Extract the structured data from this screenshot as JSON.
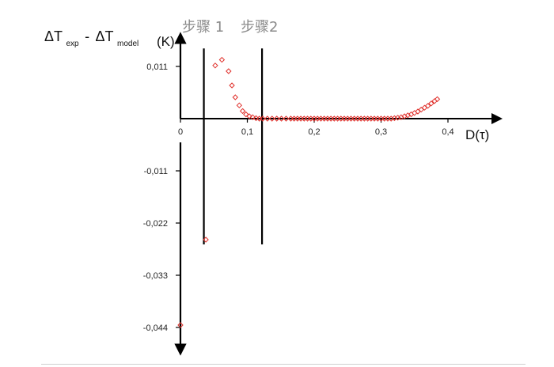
{
  "chart_data": {
    "type": "scatter",
    "title": "",
    "ylabel": {
      "main_1": "ΔT",
      "sub_1": "exp",
      "sep": "-",
      "main_2": "ΔT",
      "sub_2": "model"
    },
    "yunit": "(K)",
    "xlabel": "D(τ)",
    "xlim": [
      0,
      0.46
    ],
    "ylim": [
      -0.048,
      0.016
    ],
    "x_ticks": [
      "0",
      "0,1",
      "0,2",
      "0,3",
      "0,4"
    ],
    "x_tick_values": [
      0,
      0.1,
      0.2,
      0.3,
      0.4
    ],
    "y_ticks": [
      "0,011",
      "-0,011",
      "-0,022",
      "-0,033",
      "-0,044"
    ],
    "y_tick_values": [
      0.011,
      -0.011,
      -0.022,
      -0.033,
      -0.044
    ],
    "step_lines": [
      {
        "label": "步骤 1",
        "x": 0.035
      },
      {
        "label": "步骤2",
        "x": 0.122
      }
    ],
    "step_line_yrange": [
      -0.0265,
      0.0148
    ],
    "marker": {
      "shape": "diamond",
      "color": "#e0322d"
    },
    "series": [
      {
        "x": [
          0,
          0.038,
          0.052,
          0.062,
          0.072,
          0.077,
          0.082,
          0.088,
          0.093,
          0.098,
          0.103,
          0.108,
          0.113,
          0.118,
          0.123,
          0.13,
          0.137,
          0.144,
          0.151,
          0.158,
          0.165,
          0.17,
          0.175,
          0.18,
          0.185,
          0.19,
          0.195,
          0.2,
          0.205,
          0.21,
          0.215,
          0.22,
          0.225,
          0.23,
          0.235,
          0.24,
          0.245,
          0.25,
          0.255,
          0.26,
          0.265,
          0.27,
          0.275,
          0.28,
          0.285,
          0.29,
          0.295,
          0.3,
          0.305,
          0.31,
          0.315,
          0.32,
          0.325,
          0.33,
          0.335,
          0.34,
          0.345,
          0.35,
          0.355,
          0.36,
          0.365,
          0.37,
          0.375,
          0.38,
          0.384
        ],
        "y": [
          -0.0435,
          -0.0255,
          0.0112,
          0.0124,
          0.01,
          0.007,
          0.0045,
          0.0028,
          0.0016,
          0.0009,
          0.0005,
          0.0003,
          0.0001,
          0.0,
          0.0,
          0.0,
          0.0,
          0.0,
          0.0,
          0.0,
          0.0,
          0.0,
          0.0,
          0.0,
          0.0,
          0.0,
          0.0,
          0.0,
          0.0,
          0.0,
          0.0,
          0.0,
          0.0,
          0.0,
          0.0,
          0.0,
          0.0,
          0.0,
          0.0,
          0.0,
          0.0,
          0.0,
          0.0,
          0.0,
          0.0,
          0.0,
          0.0,
          0.0,
          0.0,
          0.0,
          0.0,
          0.0001,
          0.0002,
          0.0003,
          0.0005,
          0.0007,
          0.0009,
          0.0012,
          0.0015,
          0.0019,
          0.0023,
          0.0027,
          0.0032,
          0.0037,
          0.0041
        ]
      }
    ]
  }
}
